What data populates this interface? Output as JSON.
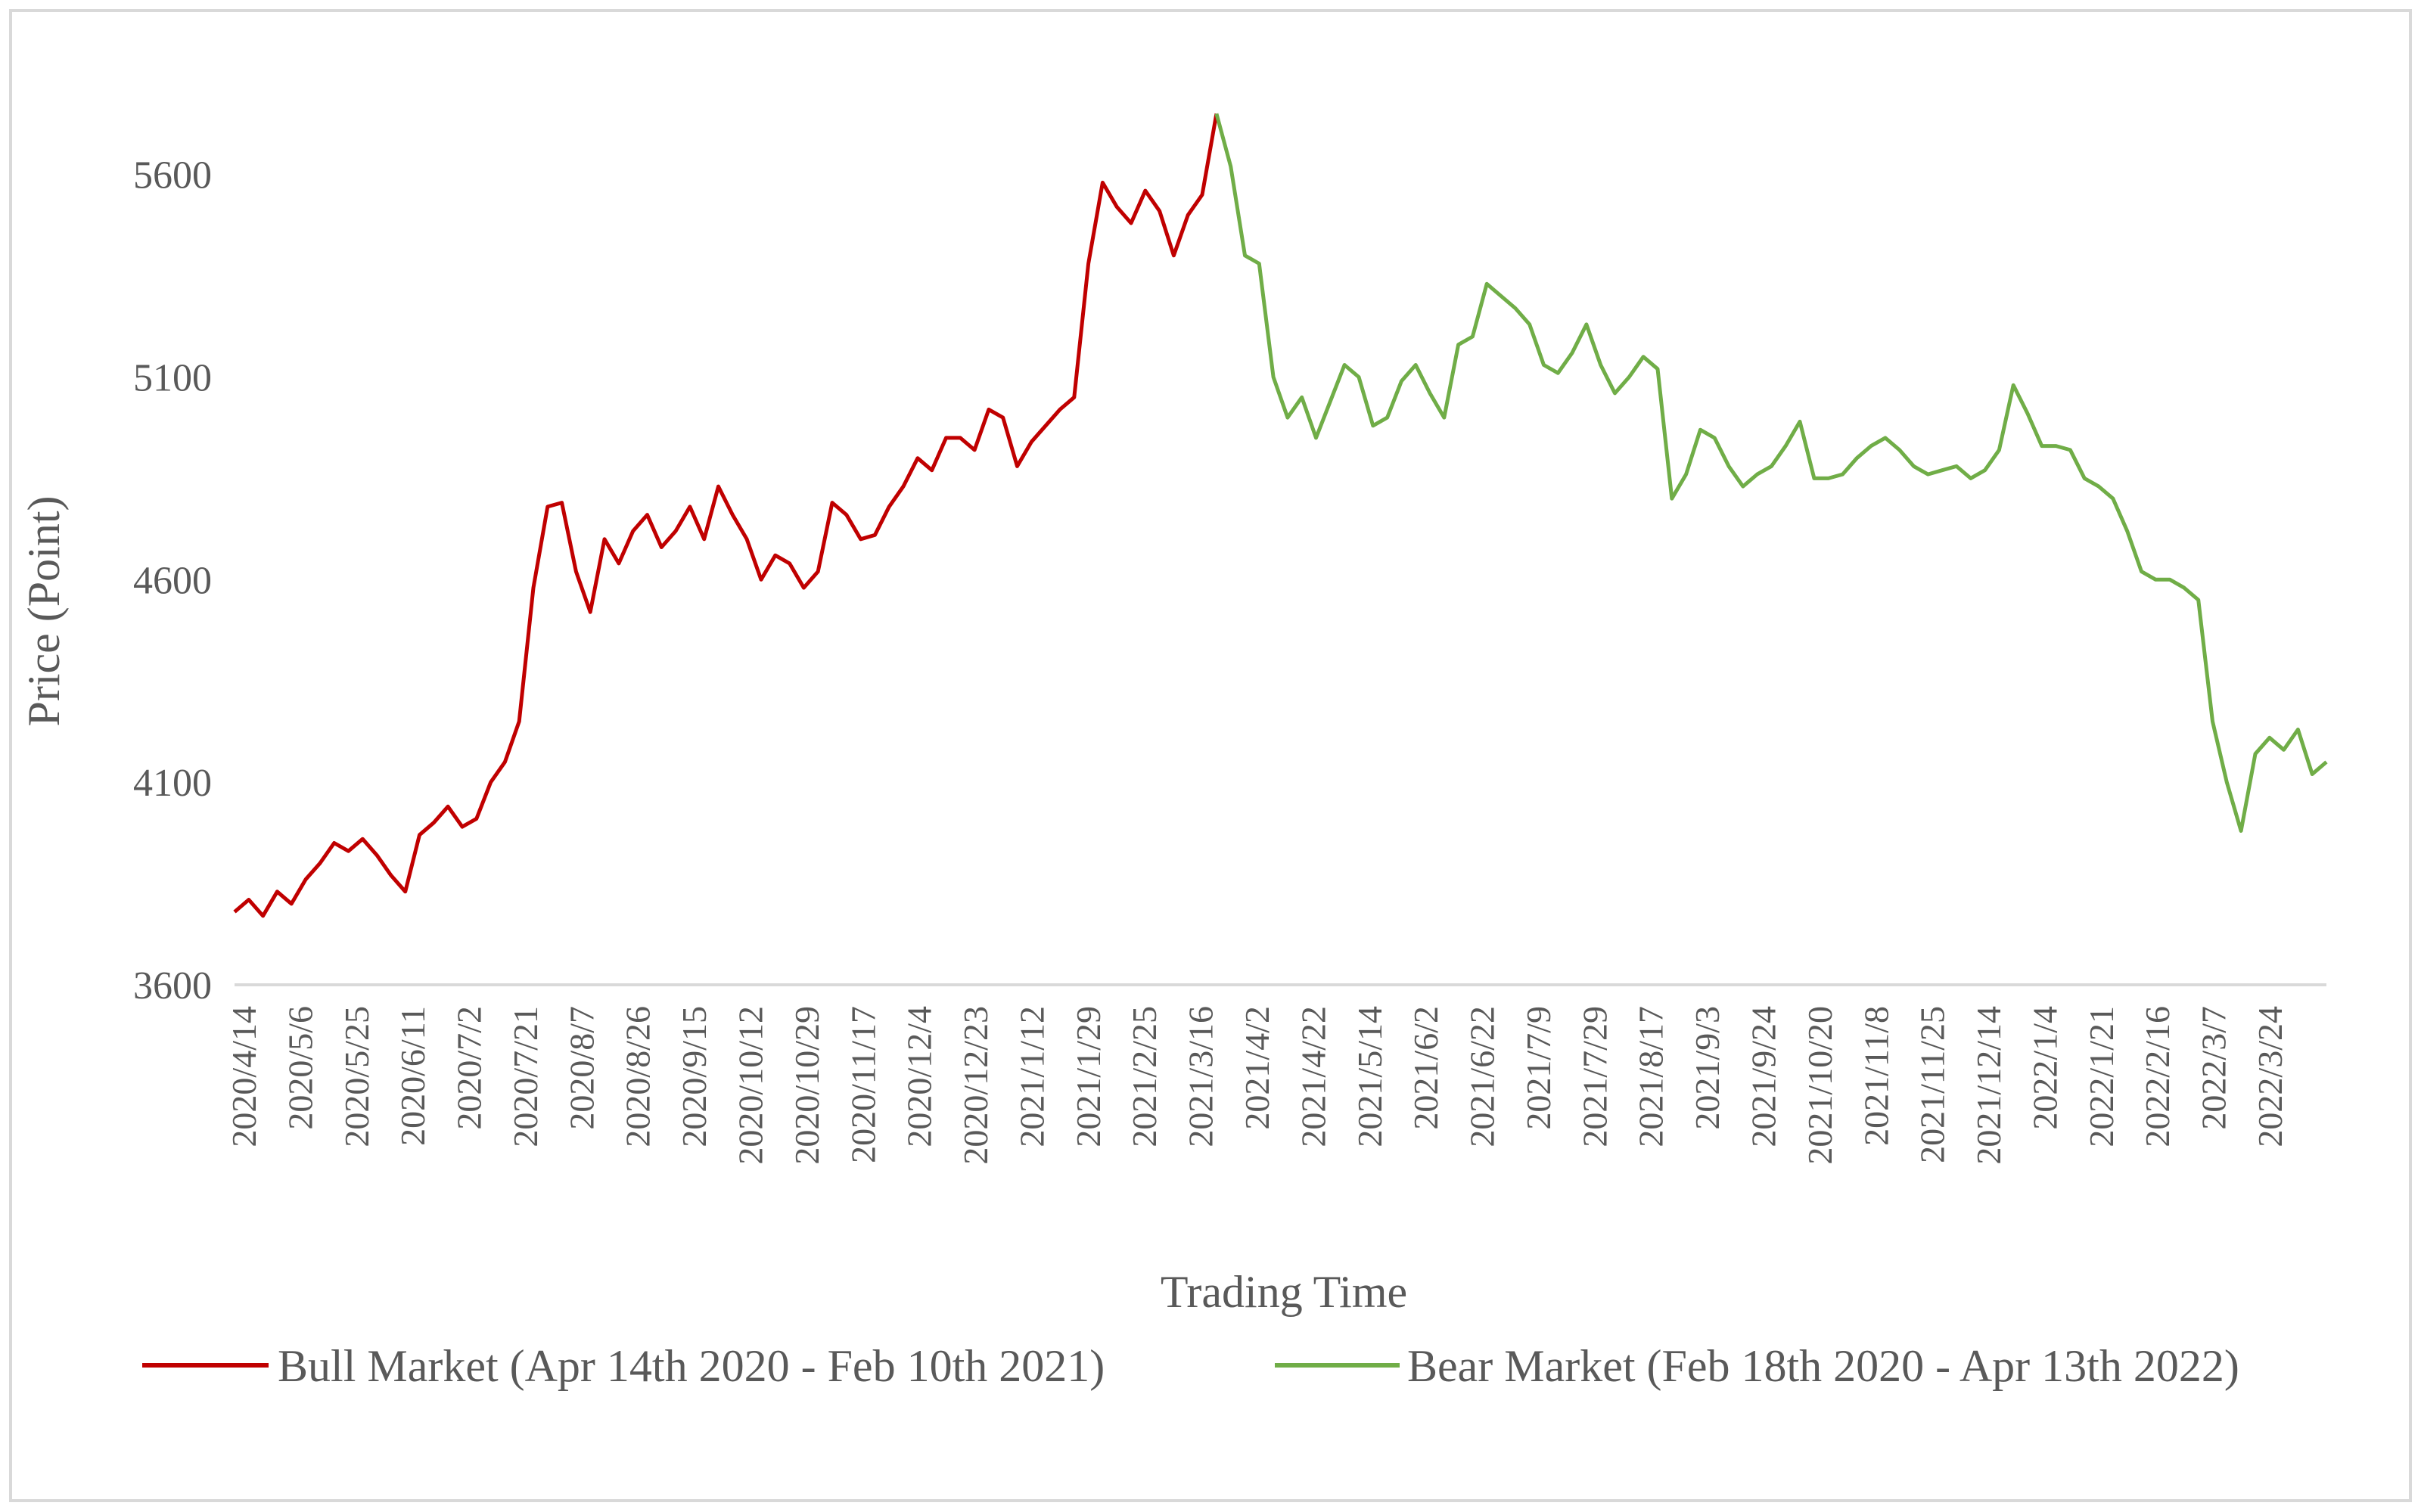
{
  "chart_data": {
    "type": "line",
    "title": "",
    "xlabel": "Trading Time",
    "ylabel": "Price (Point)",
    "ylim": [
      3600,
      5900
    ],
    "yticks": [
      3600,
      4100,
      4600,
      5100,
      5600
    ],
    "grid": false,
    "legend_position": "bottom",
    "x_tick_labels": [
      "2020/4/14",
      "2020/5/6",
      "2020/5/25",
      "2020/6/11",
      "2020/7/2",
      "2020/7/21",
      "2020/8/7",
      "2020/8/26",
      "2020/9/15",
      "2020/10/12",
      "2020/10/29",
      "2020/11/17",
      "2020/12/4",
      "2020/12/23",
      "2021/1/12",
      "2021/1/29",
      "2021/2/25",
      "2021/3/16",
      "2021/4/2",
      "2021/4/22",
      "2021/5/14",
      "2021/6/2",
      "2021/6/22",
      "2021/7/9",
      "2021/7/29",
      "2021/8/17",
      "2021/9/3",
      "2021/9/24",
      "2021/10/20",
      "2021/11/8",
      "2021/11/25",
      "2021/12/14",
      "2022/1/4",
      "2022/1/21",
      "2022/2/16",
      "2022/3/7",
      "2022/3/24"
    ],
    "series": [
      {
        "name": "Bull Market (Apr 14th 2020 - Feb 10th 2021)",
        "color": "#c00000",
        "start_index": 0,
        "values": [
          3780,
          3810,
          3770,
          3830,
          3800,
          3860,
          3900,
          3950,
          3930,
          3960,
          3920,
          3870,
          3830,
          3970,
          4000,
          4040,
          3990,
          4010,
          4100,
          4150,
          4250,
          4580,
          4780,
          4790,
          4620,
          4520,
          4700,
          4640,
          4720,
          4760,
          4680,
          4720,
          4780,
          4700,
          4830,
          4760,
          4700,
          4600,
          4660,
          4640,
          4580,
          4620,
          4790,
          4760,
          4700,
          4710,
          4780,
          4830,
          4900,
          4870,
          4950,
          4950,
          4920,
          5020,
          5000,
          4880,
          4940,
          4980,
          5020,
          5050,
          5380,
          5580,
          5520,
          5480,
          5560,
          5510,
          5400,
          5500,
          5550,
          5750
        ]
      },
      {
        "name": "Bear Market (Feb 18th 2020 - Apr 13th 2022)",
        "color": "#70ad47",
        "start_index": 69,
        "values": [
          5750,
          5620,
          5400,
          5380,
          5100,
          5000,
          5050,
          4950,
          5040,
          5130,
          5100,
          4980,
          5000,
          5090,
          5130,
          5060,
          5000,
          5180,
          5200,
          5330,
          5300,
          5270,
          5230,
          5130,
          5110,
          5160,
          5230,
          5130,
          5060,
          5100,
          5150,
          5120,
          4800,
          4860,
          4970,
          4950,
          4880,
          4830,
          4860,
          4880,
          4930,
          4990,
          4850,
          4850,
          4860,
          4900,
          4930,
          4950,
          4920,
          4880,
          4860,
          4870,
          4880,
          4850,
          4870,
          4920,
          5080,
          5010,
          4930,
          4930,
          4920,
          4850,
          4830,
          4800,
          4720,
          4620,
          4600,
          4600,
          4580,
          4550,
          4250,
          4100,
          3980,
          4170,
          4210,
          4180,
          4230,
          4120,
          4150
        ]
      }
    ]
  }
}
